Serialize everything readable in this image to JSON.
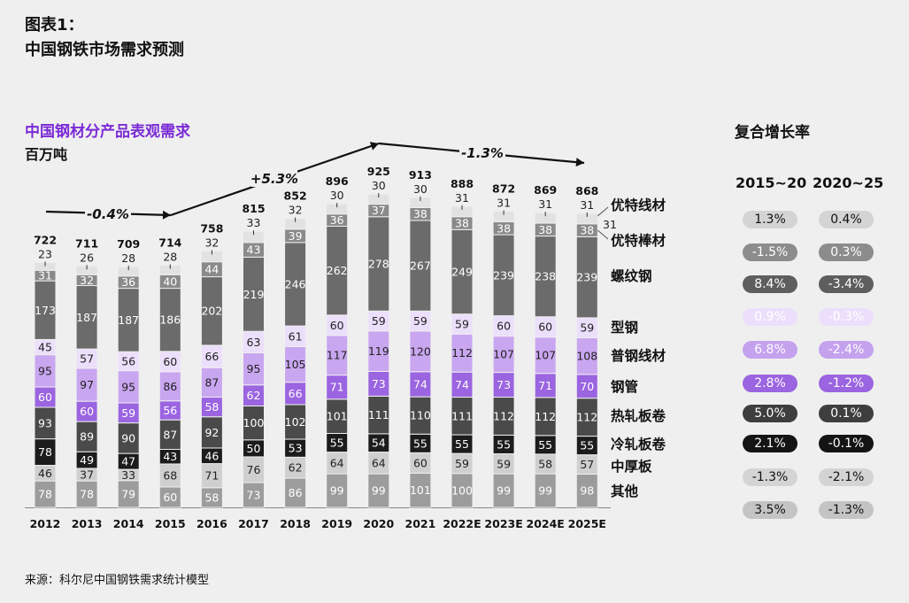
{
  "header": {
    "figure_label": "图表1：",
    "title": "中国钢铁市场需求预测"
  },
  "chart_subtitle": "中国钢材分产品表观需求",
  "unit": "百万吨",
  "source": "来源：科尔尼中国钢铁需求统计模型",
  "chart_data": {
    "type": "bar",
    "stacked": true,
    "categories": [
      "2012",
      "2013",
      "2014",
      "2015",
      "2016",
      "2017",
      "2018",
      "2019",
      "2020",
      "2021",
      "2022E",
      "2023E",
      "2024E",
      "2025E"
    ],
    "series": [
      {
        "name": "其他",
        "color": "#9c9c9c",
        "text_color": "#ffffff",
        "values": [
          78,
          78,
          79,
          60,
          58,
          73,
          86,
          99,
          99,
          101,
          100,
          99,
          99,
          98
        ]
      },
      {
        "name": "中厚板",
        "color": "#cfcfcf",
        "text_color": "#222222",
        "values": [
          46,
          37,
          33,
          68,
          71,
          76,
          62,
          64,
          64,
          60,
          59,
          59,
          58,
          57
        ]
      },
      {
        "name": "冷轧板卷",
        "color": "#1c1c1c",
        "text_color": "#ffffff",
        "values": [
          78,
          49,
          47,
          43,
          46,
          50,
          53,
          55,
          54,
          55,
          55,
          55,
          55,
          55
        ]
      },
      {
        "name": "热轧板卷",
        "color": "#4a4a4a",
        "text_color": "#ffffff",
        "values": [
          93,
          89,
          90,
          87,
          92,
          100,
          102,
          101,
          111,
          110,
          111,
          112,
          112,
          112
        ]
      },
      {
        "name": "钢管",
        "color": "#9b64e0",
        "text_color": "#ffffff",
        "values": [
          60,
          60,
          59,
          56,
          58,
          62,
          66,
          71,
          73,
          74,
          74,
          73,
          71,
          70
        ]
      },
      {
        "name": "普钢线材",
        "color": "#c9a6f0",
        "text_color": "#222222",
        "values": [
          95,
          97,
          95,
          86,
          87,
          95,
          105,
          117,
          119,
          120,
          112,
          107,
          107,
          108
        ]
      },
      {
        "name": "型钢",
        "color": "#ecdffb",
        "text_color": "#222222",
        "values": [
          45,
          57,
          56,
          60,
          66,
          63,
          61,
          60,
          59,
          59,
          59,
          60,
          60,
          59
        ]
      },
      {
        "name": "螺纹钢",
        "color": "#6b6b6b",
        "text_color": "#ffffff",
        "values": [
          173,
          187,
          187,
          186,
          202,
          219,
          246,
          262,
          278,
          267,
          249,
          239,
          238,
          239
        ]
      },
      {
        "name": "优特棒材",
        "color": "#8a8a8a",
        "text_color": "#ffffff",
        "values": [
          31,
          32,
          36,
          40,
          44,
          43,
          39,
          36,
          37,
          38,
          38,
          38,
          38,
          38
        ]
      },
      {
        "name": "优特线材",
        "color": "#e2e2e2",
        "text_color": "#222222",
        "values": [
          23,
          26,
          28,
          28,
          32,
          33,
          32,
          30,
          30,
          30,
          31,
          31,
          31,
          31
        ]
      }
    ],
    "totals": [
      722,
      711,
      709,
      714,
      758,
      815,
      852,
      896,
      925,
      913,
      888,
      872,
      869,
      868
    ],
    "trend_annotations": [
      {
        "label": "-0.4%",
        "from": "2012",
        "to": "2015"
      },
      {
        "label": "+5.3%",
        "from": "2015",
        "to": "2020"
      },
      {
        "label": "-1.3%",
        "from": "2020",
        "to": "2025E"
      }
    ],
    "ylim": [
      0,
      960
    ]
  },
  "growth_table": {
    "title": "复合增长率",
    "headers": [
      "2015~20",
      "2020~25"
    ],
    "rows": [
      {
        "values": [
          "1.3%",
          "0.4%"
        ],
        "color": "#d4d4d4",
        "text_color": "#111111"
      },
      {
        "values": [
          "-1.5%",
          "0.3%"
        ],
        "color": "#8c8c8c",
        "text_color": "#ffffff"
      },
      {
        "values": [
          "8.4%",
          "-3.4%"
        ],
        "color": "#5e5e5e",
        "text_color": "#ffffff"
      },
      {
        "values": [
          "0.9%",
          "-0.3%"
        ],
        "color": "#ecdffb",
        "text_color": "#ffffff"
      },
      {
        "values": [
          "6.8%",
          "-2.4%"
        ],
        "color": "#c4a2ee",
        "text_color": "#ffffff"
      },
      {
        "values": [
          "2.8%",
          "-1.2%"
        ],
        "color": "#9b64e0",
        "text_color": "#ffffff"
      },
      {
        "values": [
          "5.0%",
          "0.1%"
        ],
        "color": "#3e3e3e",
        "text_color": "#ffffff"
      },
      {
        "values": [
          "2.1%",
          "-0.1%"
        ],
        "color": "#141414",
        "text_color": "#ffffff"
      },
      {
        "values": [
          "-1.3%",
          "-2.1%"
        ],
        "color": "#d4d4d4",
        "text_color": "#111111"
      },
      {
        "values": [
          "3.5%",
          "-1.3%"
        ],
        "color": "#c4c4c4",
        "text_color": "#111111"
      }
    ]
  }
}
